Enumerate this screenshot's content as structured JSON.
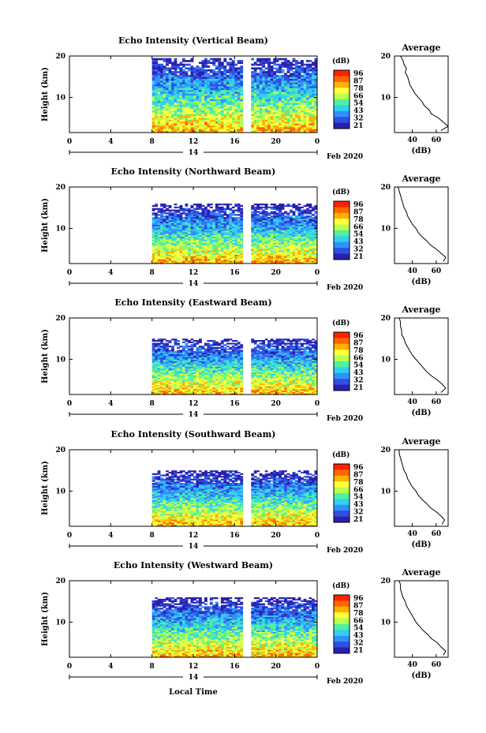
{
  "figure": {
    "date_label": "Feb 2020",
    "xlabel": "Local Time",
    "day_label": "14"
  },
  "colorbar": {
    "unit": "(dB)",
    "ticks": [
      "96",
      "87",
      "78",
      "66",
      "54",
      "43",
      "32",
      "21"
    ],
    "colors": [
      "#ff2200",
      "#ff6600",
      "#ffb000",
      "#ffff40",
      "#b8ff50",
      "#50f0a0",
      "#30d0f0",
      "#3090ff",
      "#3050e0",
      "#2a20b0"
    ]
  },
  "profile": {
    "title": "Average",
    "xlabel": "(dB)",
    "xticks": [
      "40",
      "60"
    ],
    "yticks": [
      "20",
      "10"
    ],
    "xlim": [
      25,
      70
    ],
    "ylim": [
      1.5,
      20
    ]
  },
  "chart_data": [
    {
      "type": "heatmap",
      "title": "Echo Intensity (Vertical Beam)",
      "ylabel": "Height (km)",
      "xticks": [
        "0",
        "4",
        "8",
        "12",
        "16",
        "20",
        "0"
      ],
      "yticks": [
        "20",
        "10"
      ],
      "xlim": [
        0,
        24
      ],
      "ylim": [
        1.5,
        20
      ],
      "data_start_hour": 8,
      "gap_hours": [
        17,
        17.3
      ],
      "top_height_km": 19.5,
      "avg_profile": {
        "height_km": [
          2,
          3,
          4,
          5,
          6,
          7,
          8,
          9,
          10,
          11,
          12,
          13,
          14,
          15,
          16,
          17,
          18,
          19,
          20
        ],
        "db": [
          64,
          70,
          66,
          62,
          56,
          54,
          50,
          48,
          45,
          42,
          40,
          38,
          37,
          36,
          34,
          35,
          33,
          32,
          30
        ]
      }
    },
    {
      "type": "heatmap",
      "title": "Echo Intensity (Northward Beam)",
      "ylabel": "Height (km)",
      "xticks": [
        "0",
        "4",
        "8",
        "12",
        "16",
        "20",
        "0"
      ],
      "yticks": [
        "20",
        "10"
      ],
      "xlim": [
        0,
        24
      ],
      "ylim": [
        1.5,
        20
      ],
      "data_start_hour": 8,
      "gap_hours": [
        17,
        17.3
      ],
      "top_height_km": 16,
      "avg_profile": {
        "height_km": [
          2,
          3,
          4,
          5,
          6,
          7,
          8,
          9,
          10,
          11,
          12,
          13,
          14,
          15,
          16,
          17,
          18,
          19,
          20
        ],
        "db": [
          66,
          68,
          64,
          60,
          55,
          52,
          48,
          45,
          43,
          40,
          38,
          36,
          35,
          33,
          32,
          31,
          30,
          29,
          28
        ]
      }
    },
    {
      "type": "heatmap",
      "title": "Echo Intensity (Eastward Beam)",
      "ylabel": "Height (km)",
      "xticks": [
        "0",
        "4",
        "8",
        "12",
        "16",
        "20",
        "0"
      ],
      "yticks": [
        "20",
        "10"
      ],
      "xlim": [
        0,
        24
      ],
      "ylim": [
        1.5,
        20
      ],
      "data_start_hour": 8,
      "gap_hours": [
        17,
        17.3
      ],
      "top_height_km": 15,
      "avg_profile": {
        "height_km": [
          2,
          3,
          4,
          5,
          6,
          7,
          8,
          9,
          10,
          11,
          12,
          13,
          14,
          15,
          16,
          17,
          18,
          19,
          20
        ],
        "db": [
          64,
          68,
          65,
          61,
          56,
          52,
          49,
          46,
          43,
          40,
          38,
          36,
          34,
          33,
          31,
          31,
          30,
          30,
          29
        ]
      }
    },
    {
      "type": "heatmap",
      "title": "Echo Intensity (Southward Beam)",
      "ylabel": "Height (km)",
      "xticks": [
        "0",
        "4",
        "8",
        "12",
        "16",
        "20",
        "0"
      ],
      "yticks": [
        "20",
        "10"
      ],
      "xlim": [
        0,
        24
      ],
      "ylim": [
        1.5,
        20
      ],
      "data_start_hour": 8,
      "gap_hours": [
        17,
        17.3
      ],
      "top_height_km": 15,
      "avg_profile": {
        "height_km": [
          2,
          3,
          4,
          5,
          6,
          7,
          8,
          9,
          10,
          11,
          12,
          13,
          14,
          15,
          16,
          17,
          18,
          19,
          20
        ],
        "db": [
          65,
          67,
          64,
          60,
          55,
          52,
          48,
          45,
          43,
          40,
          38,
          36,
          35,
          33,
          32,
          31,
          30,
          29,
          29
        ]
      }
    },
    {
      "type": "heatmap",
      "title": "Echo Intensity (Westward Beam)",
      "ylabel": "Height (km)",
      "xticks": [
        "0",
        "4",
        "8",
        "12",
        "16",
        "20",
        "0"
      ],
      "yticks": [
        "20",
        "10"
      ],
      "xlim": [
        0,
        24
      ],
      "ylim": [
        1.5,
        20
      ],
      "data_start_hour": 8,
      "gap_hours": [
        17,
        17.3
      ],
      "top_height_km": 16,
      "avg_profile": {
        "height_km": [
          2,
          3,
          4,
          5,
          6,
          7,
          8,
          9,
          10,
          11,
          12,
          13,
          14,
          15,
          16,
          17,
          18,
          19,
          20
        ],
        "db": [
          66,
          68,
          64,
          61,
          56,
          53,
          49,
          46,
          43,
          41,
          39,
          37,
          35,
          34,
          32,
          31,
          30,
          30,
          29
        ]
      }
    }
  ]
}
